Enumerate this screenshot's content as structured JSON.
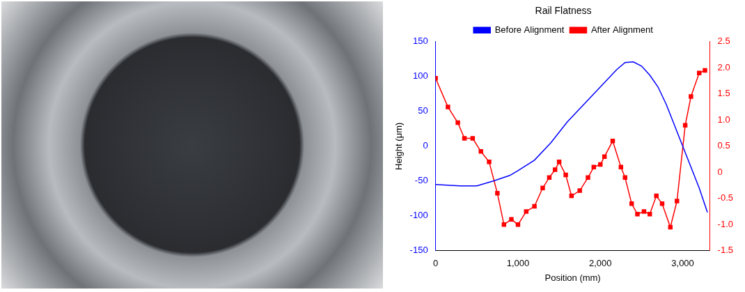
{
  "chart_data": {
    "type": "line",
    "title": "Rail Flatness",
    "x_label": "Position (mm)",
    "y_label": "Height (μm)",
    "xlim": [
      0,
      3330
    ],
    "xticks": [
      0,
      1000,
      2000,
      3000
    ],
    "ylim": [
      -150,
      150
    ],
    "yticks": [
      -150,
      -100,
      -50,
      0,
      50,
      100,
      150
    ],
    "y2lim": [
      -1.5,
      2.5
    ],
    "y2ticks": [
      -1.5,
      -1,
      -0.5,
      0,
      0.5,
      1,
      1.5,
      2,
      2.5
    ],
    "grid": false,
    "legend": "top",
    "series": [
      {
        "name": "Before Alignment",
        "color": "#0000ff",
        "marker": "none",
        "line_style": "solid",
        "x": [
          0,
          150,
          300,
          500,
          700,
          900,
          1000,
          1200,
          1400,
          1600,
          1800,
          2000,
          2200,
          2300,
          2400,
          2500,
          2600,
          2700,
          2800,
          2900,
          3000,
          3100,
          3200,
          3300
        ],
        "values": [
          -55,
          -56,
          -57,
          -57,
          -50,
          -42,
          -35,
          -20,
          5,
          35,
          60,
          85,
          110,
          120,
          121,
          115,
          102,
          85,
          60,
          30,
          0,
          -30,
          -60,
          -95
        ]
      },
      {
        "name": "After Alignment",
        "color": "#ff0000",
        "marker": "square",
        "line_style": "solid",
        "axis": "y2",
        "x": [
          0,
          150,
          270,
          350,
          450,
          550,
          650,
          750,
          830,
          920,
          1000,
          1100,
          1200,
          1300,
          1380,
          1450,
          1500,
          1580,
          1650,
          1750,
          1850,
          1920,
          2000,
          2050,
          2150,
          2250,
          2300,
          2380,
          2450,
          2530,
          2600,
          2680,
          2750,
          2850,
          2930,
          3030,
          3100,
          3200,
          3270
        ],
        "values": [
          1.8,
          1.25,
          0.95,
          0.65,
          0.65,
          0.4,
          0.2,
          -0.4,
          -1.0,
          -0.9,
          -1.0,
          -0.75,
          -0.65,
          -0.3,
          -0.1,
          0.05,
          0.2,
          -0.05,
          -0.45,
          -0.35,
          -0.1,
          0.1,
          0.15,
          0.3,
          0.6,
          0.1,
          -0.1,
          -0.6,
          -0.8,
          -0.75,
          -0.8,
          -0.45,
          -0.6,
          -1.05,
          -0.55,
          0.9,
          1.45,
          1.9,
          1.95
        ]
      }
    ]
  }
}
